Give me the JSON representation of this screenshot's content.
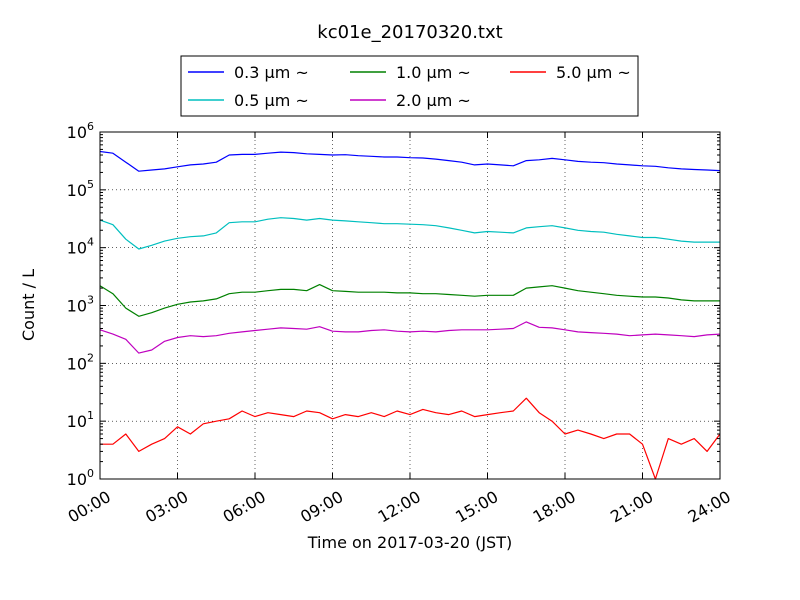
{
  "chart_data": {
    "type": "line",
    "title": "kc01e_20170320.txt",
    "xlabel": "Time on 2017-03-20 (JST)",
    "ylabel": "Count / L",
    "y_scale": "log",
    "ylim": [
      1,
      1000000
    ],
    "xlim": [
      "00:00",
      "24:00"
    ],
    "grid": true,
    "legend_position": "top-center, above plot",
    "x_tick_labels": [
      "00:00",
      "03:00",
      "06:00",
      "09:00",
      "12:00",
      "15:00",
      "18:00",
      "21:00",
      "24:00"
    ],
    "y_tick_labels": [
      {
        "base": "10",
        "exp": "0"
      },
      {
        "base": "10",
        "exp": "1"
      },
      {
        "base": "10",
        "exp": "2"
      },
      {
        "base": "10",
        "exp": "3"
      },
      {
        "base": "10",
        "exp": "4"
      },
      {
        "base": "10",
        "exp": "5"
      },
      {
        "base": "10",
        "exp": "6"
      }
    ],
    "x": [
      "00:00",
      "00:30",
      "01:00",
      "01:30",
      "02:00",
      "02:30",
      "03:00",
      "03:30",
      "04:00",
      "04:30",
      "05:00",
      "05:30",
      "06:00",
      "06:30",
      "07:00",
      "07:30",
      "08:00",
      "08:30",
      "09:00",
      "09:30",
      "10:00",
      "10:30",
      "11:00",
      "11:30",
      "12:00",
      "12:30",
      "13:00",
      "13:30",
      "14:00",
      "14:30",
      "15:00",
      "15:30",
      "16:00",
      "16:30",
      "17:00",
      "17:30",
      "18:00",
      "18:30",
      "19:00",
      "19:30",
      "20:00",
      "20:30",
      "21:00",
      "21:30",
      "22:00",
      "22:30",
      "23:00",
      "23:30",
      "24:00"
    ],
    "series": [
      {
        "name": "0.3 μm ~",
        "color": "#0000ff",
        "values": [
          460000,
          430000,
          300000,
          210000,
          220000,
          230000,
          250000,
          270000,
          280000,
          300000,
          400000,
          410000,
          410000,
          430000,
          450000,
          440000,
          420000,
          410000,
          400000,
          405000,
          390000,
          380000,
          370000,
          370000,
          360000,
          355000,
          340000,
          320000,
          300000,
          270000,
          280000,
          270000,
          260000,
          320000,
          330000,
          350000,
          330000,
          310000,
          300000,
          295000,
          280000,
          270000,
          260000,
          255000,
          240000,
          230000,
          225000,
          220000,
          215000
        ]
      },
      {
        "name": "0.5 μm ~",
        "color": "#00bfbf",
        "values": [
          30000,
          25000,
          14000,
          9500,
          11000,
          13000,
          14500,
          15500,
          16000,
          18000,
          27000,
          28000,
          28000,
          31000,
          33000,
          32000,
          30000,
          32000,
          30000,
          29000,
          28000,
          27000,
          26000,
          26000,
          25500,
          25000,
          24000,
          22000,
          20000,
          18000,
          19000,
          18500,
          18000,
          22000,
          23000,
          24000,
          22000,
          20000,
          19000,
          18500,
          17000,
          16000,
          15000,
          15000,
          14000,
          13000,
          12500,
          12500,
          12500
        ]
      },
      {
        "name": "1.0 μm ~",
        "color": "#008000",
        "values": [
          2200,
          1600,
          900,
          650,
          750,
          900,
          1050,
          1150,
          1200,
          1300,
          1600,
          1700,
          1700,
          1800,
          1900,
          1900,
          1800,
          2300,
          1800,
          1750,
          1700,
          1700,
          1700,
          1650,
          1650,
          1600,
          1600,
          1550,
          1500,
          1450,
          1500,
          1500,
          1500,
          2000,
          2100,
          2200,
          2000,
          1800,
          1700,
          1600,
          1500,
          1450,
          1400,
          1400,
          1350,
          1250,
          1200,
          1200,
          1200
        ]
      },
      {
        "name": "2.0 μm ~",
        "color": "#bf00bf",
        "values": [
          380,
          320,
          260,
          150,
          170,
          240,
          280,
          300,
          290,
          300,
          330,
          350,
          370,
          390,
          410,
          400,
          390,
          430,
          360,
          350,
          350,
          370,
          380,
          360,
          350,
          360,
          350,
          370,
          380,
          380,
          380,
          390,
          400,
          520,
          420,
          410,
          380,
          350,
          340,
          330,
          320,
          300,
          310,
          320,
          310,
          300,
          290,
          310,
          320
        ]
      },
      {
        "name": "5.0 μm ~",
        "color": "#ff0000",
        "values": [
          4,
          4,
          6,
          3,
          4,
          5,
          8,
          6,
          9,
          10,
          11,
          15,
          12,
          14,
          13,
          12,
          15,
          14,
          11,
          13,
          12,
          14,
          12,
          15,
          13,
          16,
          14,
          13,
          15,
          12,
          13,
          14,
          15,
          25,
          14,
          10,
          6,
          7,
          6,
          5,
          6,
          6,
          4,
          1,
          5,
          4,
          5,
          3,
          6
        ]
      }
    ]
  }
}
